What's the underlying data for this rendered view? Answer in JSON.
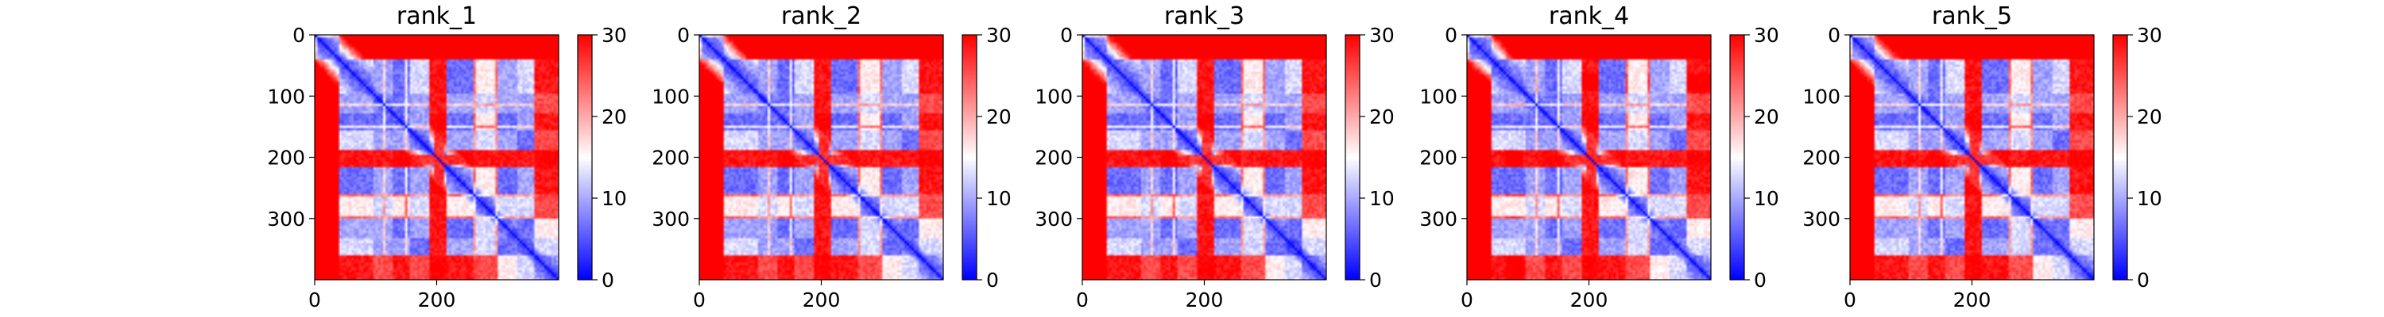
{
  "chart_data": [
    {
      "type": "heatmap",
      "title": "rank_1",
      "variant": 0,
      "xticks": [
        0,
        200
      ],
      "yticks": [
        0,
        100,
        200,
        300
      ],
      "xlim": [
        0,
        400
      ],
      "ylim": [
        400,
        0
      ],
      "colorbar": {
        "range": [
          0,
          30
        ],
        "ticks": [
          0,
          10,
          20,
          30
        ],
        "colormap": "bwr"
      }
    },
    {
      "type": "heatmap",
      "title": "rank_2",
      "variant": 1,
      "xticks": [
        0,
        200
      ],
      "yticks": [
        0,
        100,
        200,
        300
      ],
      "xlim": [
        0,
        400
      ],
      "ylim": [
        400,
        0
      ],
      "colorbar": {
        "range": [
          0,
          30
        ],
        "ticks": [
          0,
          10,
          20,
          30
        ],
        "colormap": "bwr"
      }
    },
    {
      "type": "heatmap",
      "title": "rank_3",
      "variant": 2,
      "xticks": [
        0,
        200
      ],
      "yticks": [
        0,
        100,
        200,
        300
      ],
      "xlim": [
        0,
        400
      ],
      "ylim": [
        400,
        0
      ],
      "colorbar": {
        "range": [
          0,
          30
        ],
        "ticks": [
          0,
          10,
          20,
          30
        ],
        "colormap": "bwr"
      }
    },
    {
      "type": "heatmap",
      "title": "rank_4",
      "variant": 3,
      "xticks": [
        0,
        200
      ],
      "yticks": [
        0,
        100,
        200,
        300
      ],
      "xlim": [
        0,
        400
      ],
      "ylim": [
        400,
        0
      ],
      "colorbar": {
        "range": [
          0,
          30
        ],
        "ticks": [
          0,
          10,
          20,
          30
        ],
        "colormap": "bwr"
      }
    },
    {
      "type": "heatmap",
      "title": "rank_5",
      "variant": 4,
      "xticks": [
        0,
        200
      ],
      "yticks": [
        0,
        100,
        200,
        300
      ],
      "xlim": [
        0,
        400
      ],
      "ylim": [
        400,
        0
      ],
      "colorbar": {
        "range": [
          0,
          30
        ],
        "ticks": [
          0,
          10,
          20,
          30
        ],
        "colormap": "bwr"
      }
    }
  ],
  "colors": {
    "low": "#0000ff",
    "mid": "#ffffff",
    "high": "#ff0000",
    "axis": "#000000"
  }
}
